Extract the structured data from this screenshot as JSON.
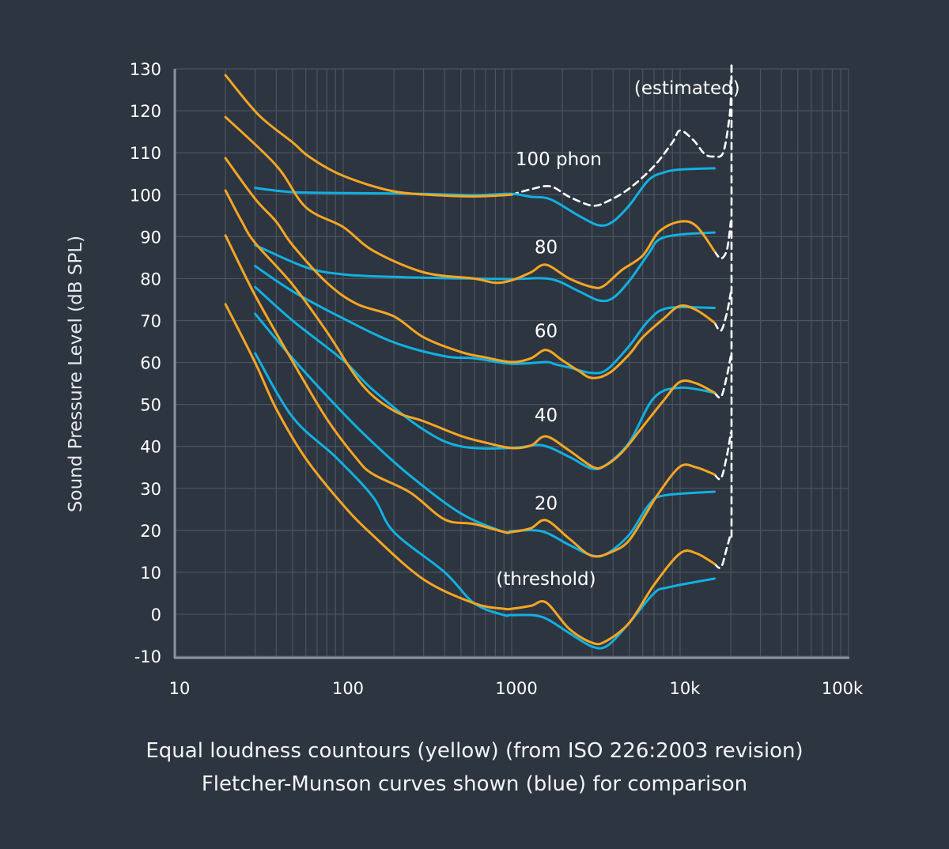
{
  "colors": {
    "background": "#2d3540",
    "grid": "#4a5561",
    "axis": "#8a949e",
    "iso": "#f5a623",
    "fletcher_munson": "#12b0e0",
    "estimated": "#ffffff",
    "text": "#ffffff"
  },
  "chart_data": {
    "type": "line",
    "title": "",
    "xlabel": "",
    "ylabel": "Sound Pressure Level (dB SPL)",
    "xscale": "log",
    "xlim": [
      10,
      100000
    ],
    "ylim": [
      -10,
      130
    ],
    "grid": true,
    "x_ticks": [
      {
        "value": 10,
        "label": "10"
      },
      {
        "value": 100,
        "label": "100"
      },
      {
        "value": 1000,
        "label": "1000"
      },
      {
        "value": 10000,
        "label": "10k"
      },
      {
        "value": 100000,
        "label": "100k"
      }
    ],
    "y_ticks": [
      {
        "value": 130,
        "label": "130"
      },
      {
        "value": 120,
        "label": "120"
      },
      {
        "value": 110,
        "label": "110"
      },
      {
        "value": 100,
        "label": "100"
      },
      {
        "value": 90,
        "label": "90"
      },
      {
        "value": 80,
        "label": "80"
      },
      {
        "value": 70,
        "label": "70"
      },
      {
        "value": 60,
        "label": "60"
      },
      {
        "value": 50,
        "label": "50"
      },
      {
        "value": 40,
        "label": "40"
      },
      {
        "value": 30,
        "label": "30"
      },
      {
        "value": 20,
        "label": "20"
      },
      {
        "value": 10,
        "label": "10"
      },
      {
        "value": 0,
        "label": "0"
      },
      {
        "value": -10,
        "label": "-10"
      }
    ],
    "series": [
      {
        "name": "ISO 226:2003 100 phon",
        "group": "iso",
        "points": [
          [
            20,
            128.5
          ],
          [
            31.5,
            119
          ],
          [
            50,
            112.5
          ],
          [
            63,
            109
          ],
          [
            100,
            104.5
          ],
          [
            200,
            100.8
          ],
          [
            400,
            99.8
          ],
          [
            630,
            99.6
          ],
          [
            1000,
            100
          ]
        ]
      },
      {
        "name": "ISO 226:2003 80 phon",
        "group": "iso",
        "points": [
          [
            20,
            118.5
          ],
          [
            40,
            107
          ],
          [
            60,
            97
          ],
          [
            100,
            92.3
          ],
          [
            150,
            86.7
          ],
          [
            300,
            81.5
          ],
          [
            600,
            80
          ],
          [
            800,
            79
          ],
          [
            1000,
            79.6
          ],
          [
            1300,
            81.5
          ],
          [
            1600,
            83.3
          ],
          [
            2200,
            80
          ],
          [
            3000,
            78
          ],
          [
            3500,
            78.2
          ],
          [
            4500,
            82
          ],
          [
            6000,
            85.5
          ],
          [
            7500,
            91.2
          ],
          [
            10000,
            93.6
          ],
          [
            12500,
            92.5
          ],
          [
            16000,
            86.5
          ]
        ]
      },
      {
        "name": "ISO 226:2003 60 phon",
        "group": "iso",
        "points": [
          [
            20,
            108.7
          ],
          [
            30,
            99
          ],
          [
            40,
            93.6
          ],
          [
            50,
            88
          ],
          [
            80,
            79
          ],
          [
            120,
            74
          ],
          [
            200,
            71
          ],
          [
            300,
            66
          ],
          [
            500,
            62.5
          ],
          [
            700,
            61.2
          ],
          [
            1000,
            60.1
          ],
          [
            1300,
            61
          ],
          [
            1600,
            63
          ],
          [
            2000,
            60.5
          ],
          [
            2500,
            58
          ],
          [
            3000,
            56.3
          ],
          [
            3800,
            57.5
          ],
          [
            5000,
            62
          ],
          [
            6000,
            66
          ],
          [
            8000,
            70.5
          ],
          [
            10000,
            73.5
          ],
          [
            12500,
            72.5
          ],
          [
            16000,
            69.5
          ]
        ]
      },
      {
        "name": "ISO 226:2003 40 phon",
        "group": "iso",
        "points": [
          [
            20,
            101
          ],
          [
            25,
            93.6
          ],
          [
            30,
            88.5
          ],
          [
            50,
            78.6
          ],
          [
            80,
            67.3
          ],
          [
            130,
            54.6
          ],
          [
            200,
            48.5
          ],
          [
            300,
            46
          ],
          [
            500,
            42.5
          ],
          [
            700,
            40.9
          ],
          [
            1000,
            39.6
          ],
          [
            1300,
            40.2
          ],
          [
            1600,
            42.4
          ],
          [
            2200,
            39
          ],
          [
            3000,
            35.2
          ],
          [
            3500,
            35.2
          ],
          [
            4500,
            38.5
          ],
          [
            6000,
            44.7
          ],
          [
            8000,
            51
          ],
          [
            10000,
            55.4
          ],
          [
            12500,
            55
          ],
          [
            16000,
            52.8
          ]
        ]
      },
      {
        "name": "ISO 226:2003 20 phon",
        "group": "iso",
        "points": [
          [
            20,
            90.3
          ],
          [
            30,
            76
          ],
          [
            50,
            60.3
          ],
          [
            80,
            46.5
          ],
          [
            120,
            37.1
          ],
          [
            150,
            33.4
          ],
          [
            250,
            29
          ],
          [
            400,
            22.6
          ],
          [
            600,
            21.5
          ],
          [
            900,
            19.6
          ],
          [
            1000,
            19.6
          ],
          [
            1300,
            20.5
          ],
          [
            1600,
            22.4
          ],
          [
            2200,
            18
          ],
          [
            3000,
            13.9
          ],
          [
            4000,
            15
          ],
          [
            5000,
            17.7
          ],
          [
            6500,
            25
          ],
          [
            7500,
            29
          ],
          [
            10000,
            35.2
          ],
          [
            12500,
            35
          ],
          [
            16000,
            33.3
          ]
        ]
      },
      {
        "name": "ISO 226:2003 threshold",
        "group": "iso",
        "points": [
          [
            20,
            73.9
          ],
          [
            30,
            60
          ],
          [
            40,
            49
          ],
          [
            60,
            37.1
          ],
          [
            100,
            26
          ],
          [
            150,
            18.8
          ],
          [
            300,
            8.3
          ],
          [
            600,
            2.6
          ],
          [
            900,
            1.3
          ],
          [
            1000,
            1.3
          ],
          [
            1300,
            2
          ],
          [
            1600,
            2.8
          ],
          [
            2200,
            -3.5
          ],
          [
            3000,
            -6.8
          ],
          [
            3600,
            -6.5
          ],
          [
            5000,
            -2
          ],
          [
            7000,
            7
          ],
          [
            10000,
            14.5
          ],
          [
            12500,
            14.5
          ],
          [
            16000,
            12
          ]
        ]
      },
      {
        "name": "Fletcher-Munson 100",
        "group": "fm",
        "points": [
          [
            30,
            101.6
          ],
          [
            50,
            100.6
          ],
          [
            100,
            100.4
          ],
          [
            300,
            100.2
          ],
          [
            600,
            99.9
          ],
          [
            1000,
            100.2
          ],
          [
            1300,
            99.5
          ],
          [
            1700,
            98.9
          ],
          [
            2500,
            95
          ],
          [
            3300,
            92.7
          ],
          [
            4000,
            93.6
          ],
          [
            5000,
            97.5
          ],
          [
            6500,
            103.5
          ],
          [
            8000,
            105.3
          ],
          [
            10000,
            106
          ],
          [
            16000,
            106.3
          ]
        ]
      },
      {
        "name": "Fletcher-Munson 80",
        "group": "fm",
        "points": [
          [
            30,
            88
          ],
          [
            60,
            82.7
          ],
          [
            100,
            81
          ],
          [
            200,
            80.4
          ],
          [
            600,
            80
          ],
          [
            1000,
            79.9
          ],
          [
            1700,
            79.9
          ],
          [
            2500,
            77
          ],
          [
            3300,
            74.8
          ],
          [
            4000,
            75.4
          ],
          [
            5000,
            79.5
          ],
          [
            6500,
            86
          ],
          [
            7500,
            89.3
          ],
          [
            10000,
            90.5
          ],
          [
            16000,
            91
          ]
        ]
      },
      {
        "name": "Fletcher-Munson 60",
        "group": "fm",
        "points": [
          [
            30,
            83
          ],
          [
            50,
            77
          ],
          [
            100,
            70.5
          ],
          [
            200,
            64.8
          ],
          [
            400,
            61.5
          ],
          [
            600,
            61
          ],
          [
            1000,
            59.7
          ],
          [
            1600,
            60.1
          ],
          [
            1800,
            59.6
          ],
          [
            2200,
            58.8
          ],
          [
            3000,
            57.5
          ],
          [
            3700,
            58.4
          ],
          [
            5000,
            64
          ],
          [
            6500,
            70
          ],
          [
            8500,
            73
          ],
          [
            16000,
            73
          ]
        ]
      },
      {
        "name": "Fletcher-Munson 40",
        "group": "fm",
        "points": [
          [
            30,
            78
          ],
          [
            50,
            70
          ],
          [
            100,
            60.5
          ],
          [
            150,
            53.5
          ],
          [
            300,
            44
          ],
          [
            500,
            40
          ],
          [
            1000,
            39.6
          ],
          [
            1500,
            40.3
          ],
          [
            2200,
            37.5
          ],
          [
            3000,
            34.7
          ],
          [
            3700,
            35.8
          ],
          [
            5000,
            41
          ],
          [
            7000,
            51.6
          ],
          [
            10000,
            54
          ],
          [
            16000,
            52.8
          ]
        ]
      },
      {
        "name": "Fletcher-Munson 20",
        "group": "fm",
        "points": [
          [
            30,
            71.6
          ],
          [
            50,
            61
          ],
          [
            100,
            47.9
          ],
          [
            150,
            40.9
          ],
          [
            250,
            33
          ],
          [
            500,
            24
          ],
          [
            900,
            19.6
          ],
          [
            1000,
            19.8
          ],
          [
            1500,
            19.8
          ],
          [
            2200,
            16.5
          ],
          [
            3000,
            14
          ],
          [
            3700,
            14.5
          ],
          [
            5000,
            19
          ],
          [
            6500,
            26
          ],
          [
            8000,
            28.3
          ],
          [
            16000,
            29.2
          ]
        ]
      },
      {
        "name": "Fletcher-Munson threshold",
        "group": "fm",
        "points": [
          [
            30,
            62.2
          ],
          [
            50,
            47
          ],
          [
            90,
            37.5
          ],
          [
            150,
            28
          ],
          [
            200,
            19.6
          ],
          [
            400,
            10
          ],
          [
            600,
            2.6
          ],
          [
            900,
            -0.2
          ],
          [
            1000,
            -0.2
          ],
          [
            1500,
            -0.6
          ],
          [
            2200,
            -4.5
          ],
          [
            3000,
            -7.7
          ],
          [
            3700,
            -7.5
          ],
          [
            5000,
            -2
          ],
          [
            7000,
            5
          ],
          [
            8500,
            6.4
          ],
          [
            16000,
            8.5
          ]
        ]
      }
    ],
    "estimated_series": [
      {
        "name": "estimated 100 phon",
        "points": [
          [
            1000,
            100
          ],
          [
            1300,
            101.3
          ],
          [
            1700,
            102
          ],
          [
            2200,
            99.5
          ],
          [
            3000,
            97.4
          ],
          [
            3700,
            98.4
          ],
          [
            5000,
            101.5
          ],
          [
            7000,
            106.8
          ],
          [
            9000,
            112.5
          ],
          [
            10000,
            115.3
          ],
          [
            12000,
            113
          ],
          [
            14000,
            109.7
          ],
          [
            16000,
            109.1
          ],
          [
            18000,
            110
          ],
          [
            19500,
            117.6
          ],
          [
            20000,
            123
          ],
          [
            20200,
            130.8
          ]
        ]
      },
      {
        "name": "estimated 80 phon",
        "points": [
          [
            16000,
            86.5
          ],
          [
            17500,
            84.8
          ],
          [
            19000,
            87
          ],
          [
            20000,
            93.6
          ]
        ]
      },
      {
        "name": "estimated 60 phon",
        "points": [
          [
            16000,
            69.5
          ],
          [
            17500,
            67.6
          ],
          [
            19000,
            72
          ],
          [
            20000,
            76.7
          ]
        ]
      },
      {
        "name": "estimated 40 phon",
        "points": [
          [
            16000,
            52.8
          ],
          [
            17500,
            51.8
          ],
          [
            19000,
            57
          ],
          [
            20000,
            61.6
          ]
        ]
      },
      {
        "name": "estimated 20 phon",
        "points": [
          [
            16000,
            33.3
          ],
          [
            17500,
            32.4
          ],
          [
            19000,
            38
          ],
          [
            20000,
            43.3
          ]
        ]
      },
      {
        "name": "estimated threshold",
        "points": [
          [
            16000,
            12
          ],
          [
            17500,
            11.2
          ],
          [
            19000,
            16
          ],
          [
            20000,
            19.2
          ]
        ]
      },
      {
        "name": "estimated 20 kHz limit",
        "points": [
          [
            20200,
            130.8
          ],
          [
            20200,
            18
          ]
        ]
      }
    ],
    "annotations": [
      {
        "text": "(estimated)",
        "x": 11000,
        "y": 124
      },
      {
        "text": "100 phon",
        "x": 1900,
        "y": 107
      },
      {
        "text": "80",
        "x": 1600,
        "y": 86
      },
      {
        "text": "60",
        "x": 1600,
        "y": 66
      },
      {
        "text": "40",
        "x": 1600,
        "y": 46
      },
      {
        "text": "20",
        "x": 1600,
        "y": 25
      },
      {
        "text": "(threshold)",
        "x": 1600,
        "y": 7
      }
    ],
    "caption": [
      "Equal loudness countours (yellow) (from ISO 226:2003 revision)",
      "Fletcher-Munson curves shown (blue) for comparison"
    ],
    "legend": "none"
  }
}
